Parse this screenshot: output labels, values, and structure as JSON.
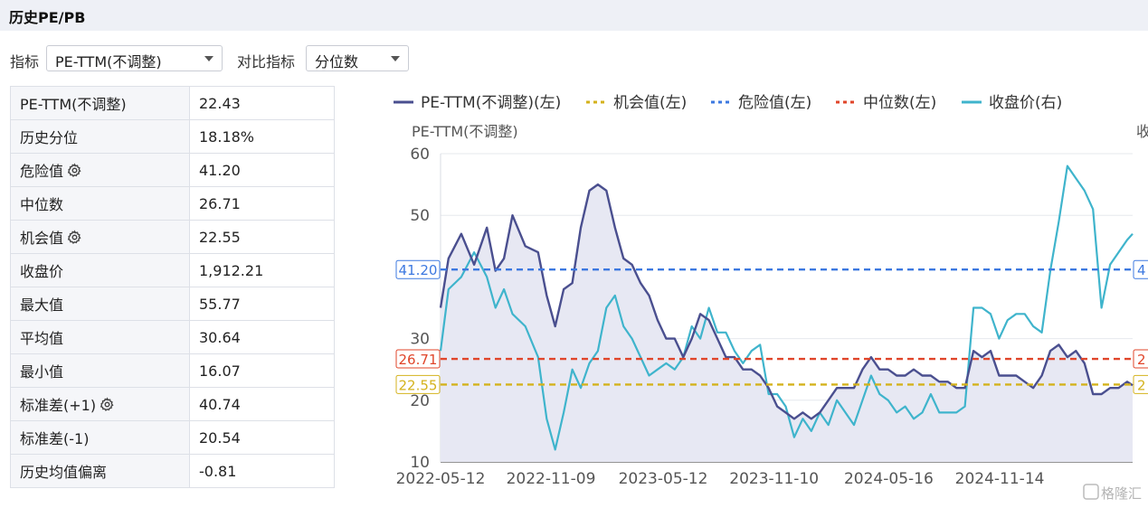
{
  "section_title": "历史PE/PB",
  "controls": {
    "metric_label": "指标",
    "metric_value": "PE-TTM(不调整)",
    "compare_label": "对比指标",
    "compare_value": "分位数"
  },
  "stats": [
    {
      "label": "PE-TTM(不调整)",
      "value": "22.43",
      "gear": false
    },
    {
      "label": "历史分位",
      "value": "18.18%",
      "gear": false
    },
    {
      "label": "危险值",
      "value": "41.20",
      "gear": true
    },
    {
      "label": "中位数",
      "value": "26.71",
      "gear": false
    },
    {
      "label": "机会值",
      "value": "22.55",
      "gear": true
    },
    {
      "label": "收盘价",
      "value": "1,912.21",
      "gear": false
    },
    {
      "label": "最大值",
      "value": "55.77",
      "gear": false
    },
    {
      "label": "平均值",
      "value": "30.64",
      "gear": false
    },
    {
      "label": "最小值",
      "value": "16.07",
      "gear": false
    },
    {
      "label": "标准差(+1)",
      "value": "40.74",
      "gear": true
    },
    {
      "label": "标准差(-1)",
      "value": "20.54",
      "gear": false
    },
    {
      "label": "历史均值偏离",
      "value": "-0.81",
      "gear": false
    }
  ],
  "chart_data": {
    "type": "line",
    "ylabel": "PE-TTM(不调整)",
    "ylabel_right_partial": "收",
    "ylim": [
      10,
      60
    ],
    "yticks": [
      10,
      20,
      30,
      50,
      60
    ],
    "x_ticks": [
      "2022-05-12",
      "2022-11-09",
      "2023-05-12",
      "2023-11-10",
      "2024-05-16",
      "2024-11-14"
    ],
    "x_range": [
      "2022-05-12",
      "2025-06-20"
    ],
    "grid": true,
    "legend_position": "top",
    "watermark": "格隆汇",
    "series": [
      {
        "name": "PE-TTM(不调整)(左)",
        "color": "#4a4f8f",
        "style": "solid",
        "fill": true,
        "points": [
          [
            "2022-05-12",
            35
          ],
          [
            "2022-05-25",
            43
          ],
          [
            "2022-06-15",
            47
          ],
          [
            "2022-07-06",
            42
          ],
          [
            "2022-07-27",
            48
          ],
          [
            "2022-08-10",
            41
          ],
          [
            "2022-08-24",
            43
          ],
          [
            "2022-09-07",
            50
          ],
          [
            "2022-09-28",
            45
          ],
          [
            "2022-10-19",
            44
          ],
          [
            "2022-11-02",
            37
          ],
          [
            "2022-11-16",
            32
          ],
          [
            "2022-11-30",
            38
          ],
          [
            "2022-12-14",
            39
          ],
          [
            "2022-12-28",
            48
          ],
          [
            "2023-01-11",
            54
          ],
          [
            "2023-01-25",
            55
          ],
          [
            "2023-02-08",
            54
          ],
          [
            "2023-02-22",
            48
          ],
          [
            "2023-03-08",
            43
          ],
          [
            "2023-03-22",
            42
          ],
          [
            "2023-04-05",
            39
          ],
          [
            "2023-04-19",
            37
          ],
          [
            "2023-05-03",
            33
          ],
          [
            "2023-05-17",
            30
          ],
          [
            "2023-05-31",
            30
          ],
          [
            "2023-06-14",
            27
          ],
          [
            "2023-06-28",
            30
          ],
          [
            "2023-07-12",
            34
          ],
          [
            "2023-07-26",
            33
          ],
          [
            "2023-08-09",
            30
          ],
          [
            "2023-08-23",
            27
          ],
          [
            "2023-09-06",
            27
          ],
          [
            "2023-09-20",
            25
          ],
          [
            "2023-10-04",
            25
          ],
          [
            "2023-10-18",
            24
          ],
          [
            "2023-11-01",
            22
          ],
          [
            "2023-11-15",
            19
          ],
          [
            "2023-11-29",
            18
          ],
          [
            "2023-12-13",
            17
          ],
          [
            "2023-12-27",
            18
          ],
          [
            "2024-01-10",
            17
          ],
          [
            "2024-01-24",
            18
          ],
          [
            "2024-02-07",
            20
          ],
          [
            "2024-02-21",
            22
          ],
          [
            "2024-03-06",
            22
          ],
          [
            "2024-03-20",
            22
          ],
          [
            "2024-04-03",
            25
          ],
          [
            "2024-04-17",
            27
          ],
          [
            "2024-05-01",
            25
          ],
          [
            "2024-05-15",
            25
          ],
          [
            "2024-05-29",
            24
          ],
          [
            "2024-06-12",
            24
          ],
          [
            "2024-06-26",
            25
          ],
          [
            "2024-07-10",
            24
          ],
          [
            "2024-07-24",
            24
          ],
          [
            "2024-08-07",
            23
          ],
          [
            "2024-08-21",
            23
          ],
          [
            "2024-09-04",
            22
          ],
          [
            "2024-09-18",
            22
          ],
          [
            "2024-10-02",
            28
          ],
          [
            "2024-10-16",
            27
          ],
          [
            "2024-10-30",
            28
          ],
          [
            "2024-11-13",
            24
          ],
          [
            "2024-11-27",
            24
          ],
          [
            "2024-12-11",
            24
          ],
          [
            "2024-12-25",
            23
          ],
          [
            "2025-01-08",
            22
          ],
          [
            "2025-01-22",
            24
          ],
          [
            "2025-02-05",
            28
          ],
          [
            "2025-02-19",
            29
          ],
          [
            "2025-03-05",
            27
          ],
          [
            "2025-03-19",
            28
          ],
          [
            "2025-04-02",
            26
          ],
          [
            "2025-04-16",
            21
          ],
          [
            "2025-04-30",
            21
          ],
          [
            "2025-05-14",
            22
          ],
          [
            "2025-05-28",
            22
          ],
          [
            "2025-06-11",
            23
          ],
          [
            "2025-06-20",
            22.43
          ]
        ]
      },
      {
        "name": "机会值(左)",
        "color": "#d4b21c",
        "style": "dotted",
        "value": 22.55
      },
      {
        "name": "危险值(左)",
        "color": "#3c78e0",
        "style": "dotted",
        "value": 41.2
      },
      {
        "name": "中位数(左)",
        "color": "#e0452a",
        "style": "dotted",
        "value": 26.71
      },
      {
        "name": "收盘价(右)",
        "color": "#3fb4cc",
        "style": "solid",
        "fill": false,
        "points": [
          [
            "2022-05-12",
            28
          ],
          [
            "2022-05-25",
            38
          ],
          [
            "2022-06-15",
            40
          ],
          [
            "2022-07-06",
            44
          ],
          [
            "2022-07-27",
            40
          ],
          [
            "2022-08-10",
            35
          ],
          [
            "2022-08-24",
            38
          ],
          [
            "2022-09-07",
            34
          ],
          [
            "2022-09-28",
            32
          ],
          [
            "2022-10-19",
            27
          ],
          [
            "2022-11-02",
            17
          ],
          [
            "2022-11-16",
            12
          ],
          [
            "2022-11-30",
            18
          ],
          [
            "2022-12-14",
            25
          ],
          [
            "2022-12-28",
            22
          ],
          [
            "2023-01-11",
            26
          ],
          [
            "2023-01-25",
            28
          ],
          [
            "2023-02-08",
            35
          ],
          [
            "2023-02-22",
            37
          ],
          [
            "2023-03-08",
            32
          ],
          [
            "2023-03-22",
            30
          ],
          [
            "2023-04-05",
            27
          ],
          [
            "2023-04-19",
            24
          ],
          [
            "2023-05-03",
            25
          ],
          [
            "2023-05-17",
            26
          ],
          [
            "2023-05-31",
            25
          ],
          [
            "2023-06-14",
            27
          ],
          [
            "2023-06-28",
            32
          ],
          [
            "2023-07-12",
            30
          ],
          [
            "2023-07-26",
            35
          ],
          [
            "2023-08-09",
            31
          ],
          [
            "2023-08-23",
            31
          ],
          [
            "2023-09-06",
            28
          ],
          [
            "2023-09-20",
            26
          ],
          [
            "2023-10-04",
            28
          ],
          [
            "2023-10-18",
            29
          ],
          [
            "2023-11-01",
            21
          ],
          [
            "2023-11-15",
            21
          ],
          [
            "2023-11-29",
            19
          ],
          [
            "2023-12-13",
            14
          ],
          [
            "2023-12-27",
            17
          ],
          [
            "2024-01-10",
            15
          ],
          [
            "2024-01-24",
            18
          ],
          [
            "2024-02-07",
            16
          ],
          [
            "2024-02-21",
            20
          ],
          [
            "2024-03-06",
            18
          ],
          [
            "2024-03-20",
            16
          ],
          [
            "2024-04-03",
            20
          ],
          [
            "2024-04-17",
            24
          ],
          [
            "2024-05-01",
            21
          ],
          [
            "2024-05-15",
            20
          ],
          [
            "2024-05-29",
            18
          ],
          [
            "2024-06-12",
            19
          ],
          [
            "2024-06-26",
            17
          ],
          [
            "2024-07-10",
            18
          ],
          [
            "2024-07-24",
            21
          ],
          [
            "2024-08-07",
            18
          ],
          [
            "2024-08-21",
            18
          ],
          [
            "2024-09-04",
            18
          ],
          [
            "2024-09-18",
            19
          ],
          [
            "2024-10-02",
            35
          ],
          [
            "2024-10-16",
            35
          ],
          [
            "2024-10-30",
            34
          ],
          [
            "2024-11-13",
            30
          ],
          [
            "2024-11-27",
            33
          ],
          [
            "2024-12-11",
            34
          ],
          [
            "2024-12-25",
            34
          ],
          [
            "2025-01-08",
            32
          ],
          [
            "2025-01-22",
            31
          ],
          [
            "2025-02-05",
            41
          ],
          [
            "2025-02-19",
            49
          ],
          [
            "2025-03-05",
            58
          ],
          [
            "2025-03-19",
            56
          ],
          [
            "2025-04-02",
            54
          ],
          [
            "2025-04-16",
            51
          ],
          [
            "2025-04-30",
            35
          ],
          [
            "2025-05-14",
            42
          ],
          [
            "2025-05-28",
            44
          ],
          [
            "2025-06-11",
            46
          ],
          [
            "2025-06-20",
            47
          ]
        ]
      }
    ],
    "line_labels": [
      {
        "series": "危险值(左)",
        "text": "41.20",
        "right_text": "4"
      },
      {
        "series": "中位数(左)",
        "text": "26.71",
        "right_text": "2"
      },
      {
        "series": "机会值(左)",
        "text": "22.55",
        "right_text": "2"
      }
    ]
  }
}
